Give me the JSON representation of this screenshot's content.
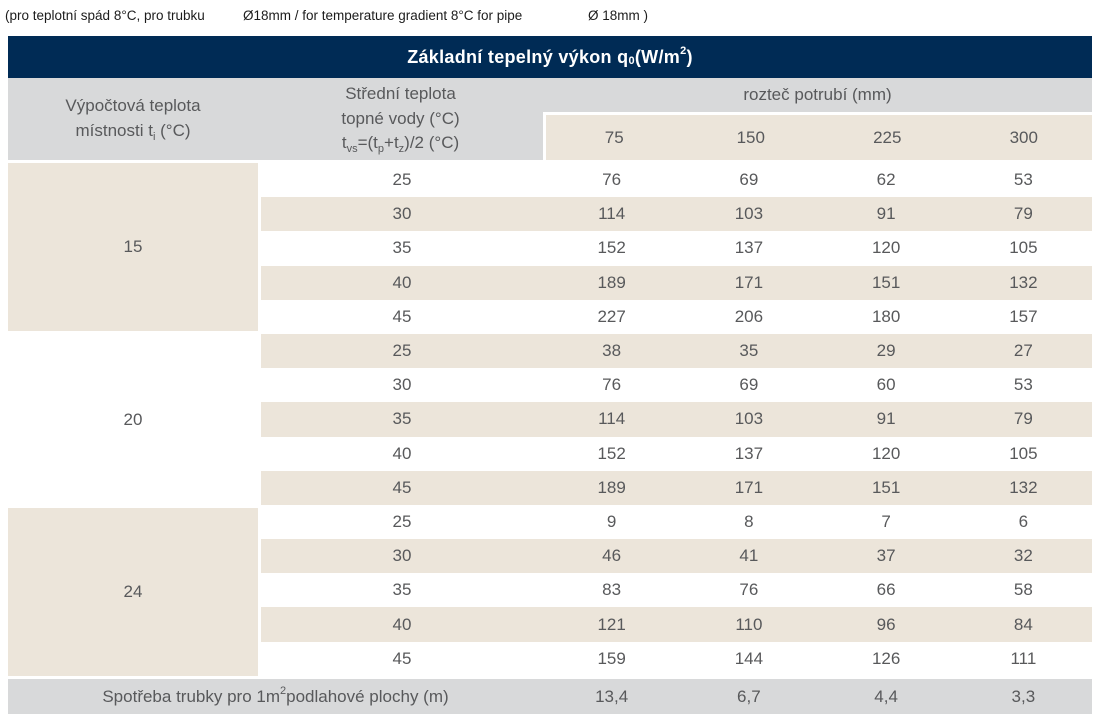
{
  "caption": {
    "seg1": "(pro teplotní spád 8°C, pro trubku",
    "seg2": "Ø18mm / for temperature gradient 8°C for pipe",
    "seg3": "Ø 18mm )"
  },
  "table": {
    "title": {
      "p1": "Základní tepelný výkon q",
      "s1": "0",
      "p2": " (W/m",
      "s2": "2",
      "p3": ")"
    },
    "header": {
      "col1_line1": "Výpočtová teplota",
      "col1_line2_pre": "místnosti t",
      "col1_line2_sub": "i",
      "col1_line2_post": " (°C)",
      "col2_line1": "Střední teplota",
      "col2_line2": "topné vody (°C)",
      "col2_line3": {
        "p1": "t",
        "s1": "vs",
        "p2": "=(t",
        "s2": "p",
        "p3": "+t",
        "s3": "z",
        "p4": ")/2 (°C)"
      },
      "spacing_title": "rozteč potrubí (mm)",
      "spacing_values": [
        "75",
        "150",
        "225",
        "300"
      ]
    },
    "groups": [
      {
        "room_temp": "15",
        "rows": [
          {
            "tvs": "25",
            "v": [
              "76",
              "69",
              "62",
              "53"
            ]
          },
          {
            "tvs": "30",
            "v": [
              "114",
              "103",
              "91",
              "79"
            ]
          },
          {
            "tvs": "35",
            "v": [
              "152",
              "137",
              "120",
              "105"
            ]
          },
          {
            "tvs": "40",
            "v": [
              "189",
              "171",
              "151",
              "132"
            ]
          },
          {
            "tvs": "45",
            "v": [
              "227",
              "206",
              "180",
              "157"
            ]
          }
        ]
      },
      {
        "room_temp": "20",
        "rows": [
          {
            "tvs": "25",
            "v": [
              "38",
              "35",
              "29",
              "27"
            ]
          },
          {
            "tvs": "30",
            "v": [
              "76",
              "69",
              "60",
              "53"
            ]
          },
          {
            "tvs": "35",
            "v": [
              "114",
              "103",
              "91",
              "79"
            ]
          },
          {
            "tvs": "40",
            "v": [
              "152",
              "137",
              "120",
              "105"
            ]
          },
          {
            "tvs": "45",
            "v": [
              "189",
              "171",
              "151",
              "132"
            ]
          }
        ]
      },
      {
        "room_temp": "24",
        "rows": [
          {
            "tvs": "25",
            "v": [
              "9",
              "8",
              "7",
              "6"
            ]
          },
          {
            "tvs": "30",
            "v": [
              "46",
              "41",
              "37",
              "32"
            ]
          },
          {
            "tvs": "35",
            "v": [
              "83",
              "76",
              "66",
              "58"
            ]
          },
          {
            "tvs": "40",
            "v": [
              "121",
              "110",
              "96",
              "84"
            ]
          },
          {
            "tvs": "45",
            "v": [
              "159",
              "144",
              "126",
              "111"
            ]
          }
        ]
      }
    ],
    "footer": {
      "label_p1": "Spotřeba trubky pro 1m",
      "label_sup": "2",
      "label_p2": " podlahové plochy (m)",
      "values": [
        "13,4",
        "6,7",
        "4,4",
        "3,3"
      ]
    }
  },
  "colors": {
    "header_navy": "#002b55",
    "header_gray": "#d8d9da",
    "row_beige": "#ece5da",
    "text_gray": "#58595b",
    "title_text": "#ffffff"
  }
}
